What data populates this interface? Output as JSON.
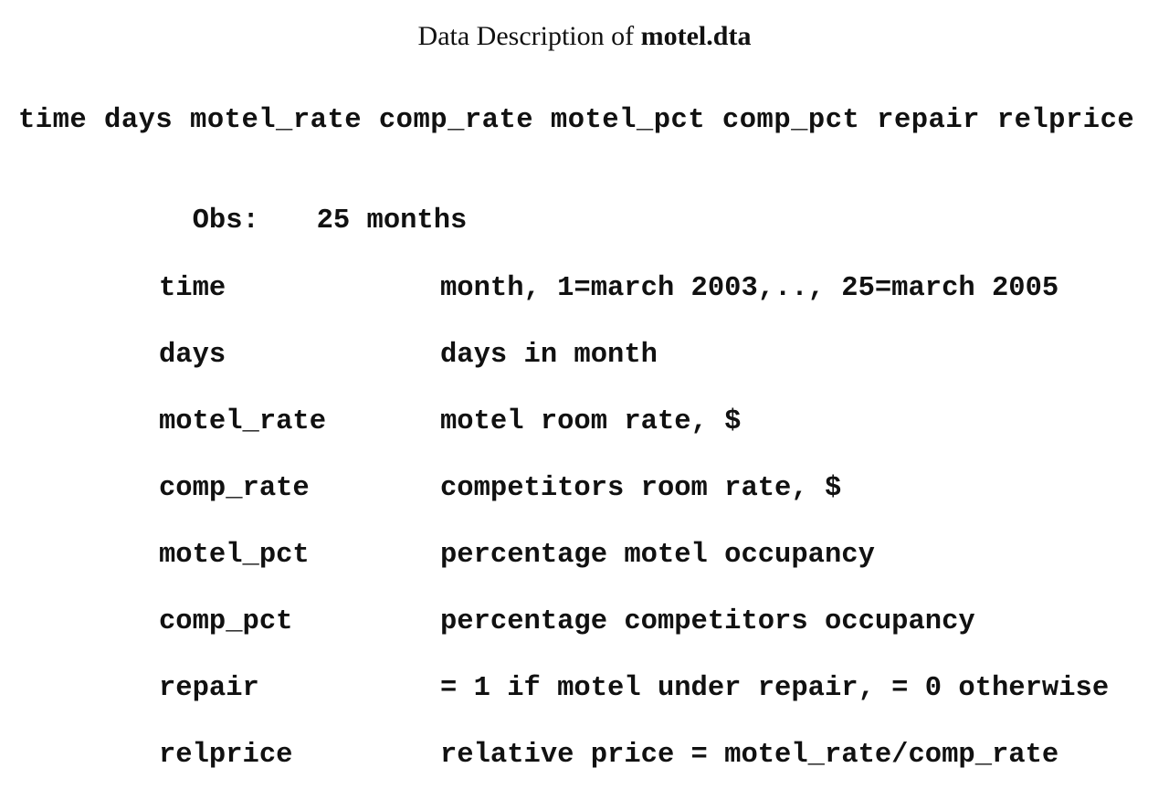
{
  "title": {
    "prefix": "Data Description of",
    "filename": "motel.dta"
  },
  "variable_list": "time days motel_rate comp_rate motel_pct comp_pct repair relprice",
  "observations": {
    "label": "Obs:",
    "value": "25 months"
  },
  "definitions": [
    {
      "name": "time",
      "description": "month, 1=march 2003,.., 25=march 2005"
    },
    {
      "name": "days",
      "description": "days in month"
    },
    {
      "name": "motel_rate",
      "description": "motel room rate, $"
    },
    {
      "name": "comp_rate",
      "description": "competitors room rate, $"
    },
    {
      "name": "motel_pct",
      "description": "percentage motel occupancy"
    },
    {
      "name": "comp_pct",
      "description": "percentage competitors occupancy"
    },
    {
      "name": "repair",
      "description": "= 1 if motel under repair, = 0 otherwise"
    },
    {
      "name": "relprice",
      "description": "relative price = motel_rate/comp_rate"
    }
  ]
}
